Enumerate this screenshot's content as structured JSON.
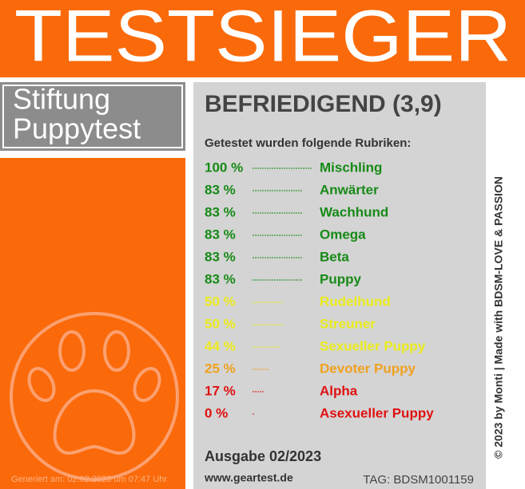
{
  "header": {
    "title": "TESTSIEGER"
  },
  "brand": {
    "line1": "Stiftung",
    "line2": "Puppytest"
  },
  "generated": "Generiert am: 02.02.2023 um 07:47 Uhr",
  "result": {
    "grade": "BEFRIEDIGEND (3,9)",
    "intro": "Getestet wurden folgende Rubriken:",
    "rows": [
      {
        "value": 100,
        "label": "100 %",
        "name": "Mischling",
        "color": "#168a16"
      },
      {
        "value": 83,
        "label": "83 %",
        "name": "Anwärter",
        "color": "#168a16"
      },
      {
        "value": 83,
        "label": "83 %",
        "name": "Wachhund",
        "color": "#168a16"
      },
      {
        "value": 83,
        "label": "83 %",
        "name": "Omega",
        "color": "#168a16"
      },
      {
        "value": 83,
        "label": "83 %",
        "name": "Beta",
        "color": "#168a16"
      },
      {
        "value": 83,
        "label": "83 %",
        "name": "Puppy",
        "color": "#168a16"
      },
      {
        "value": 50,
        "label": "50 %",
        "name": "Rudelhund",
        "color": "#eaea1c"
      },
      {
        "value": 50,
        "label": "50 %",
        "name": "Streuner",
        "color": "#eaea1c"
      },
      {
        "value": 44,
        "label": "44 %",
        "name": "Sexueller Puppy",
        "color": "#eaea1c"
      },
      {
        "value": 25,
        "label": "25 %",
        "name": "Devoter Puppy",
        "color": "#f0a11e"
      },
      {
        "value": 17,
        "label": "17 %",
        "name": "Alpha",
        "color": "#e01010"
      },
      {
        "value": 0,
        "label": "0 %",
        "name": "Asexueller Puppy",
        "color": "#e01010"
      }
    ],
    "issue": "Ausgabe 02/2023",
    "website": "www.geartest.de",
    "tag": "TAG: BDSM1001159"
  },
  "copyright": "© 2023 by Monti | Made with BDSM-LOVE & PASSION"
}
